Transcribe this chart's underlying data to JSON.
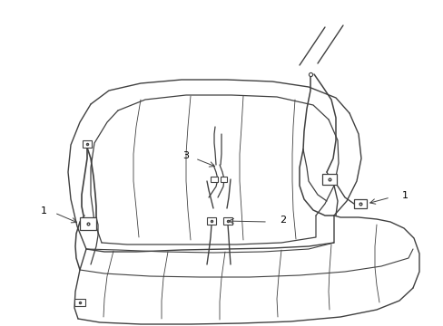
{
  "background_color": "#ffffff",
  "line_color": "#404040",
  "label_color": "#000000",
  "label_fontsize": 8,
  "fig_width": 4.89,
  "fig_height": 3.6,
  "dpi": 100
}
